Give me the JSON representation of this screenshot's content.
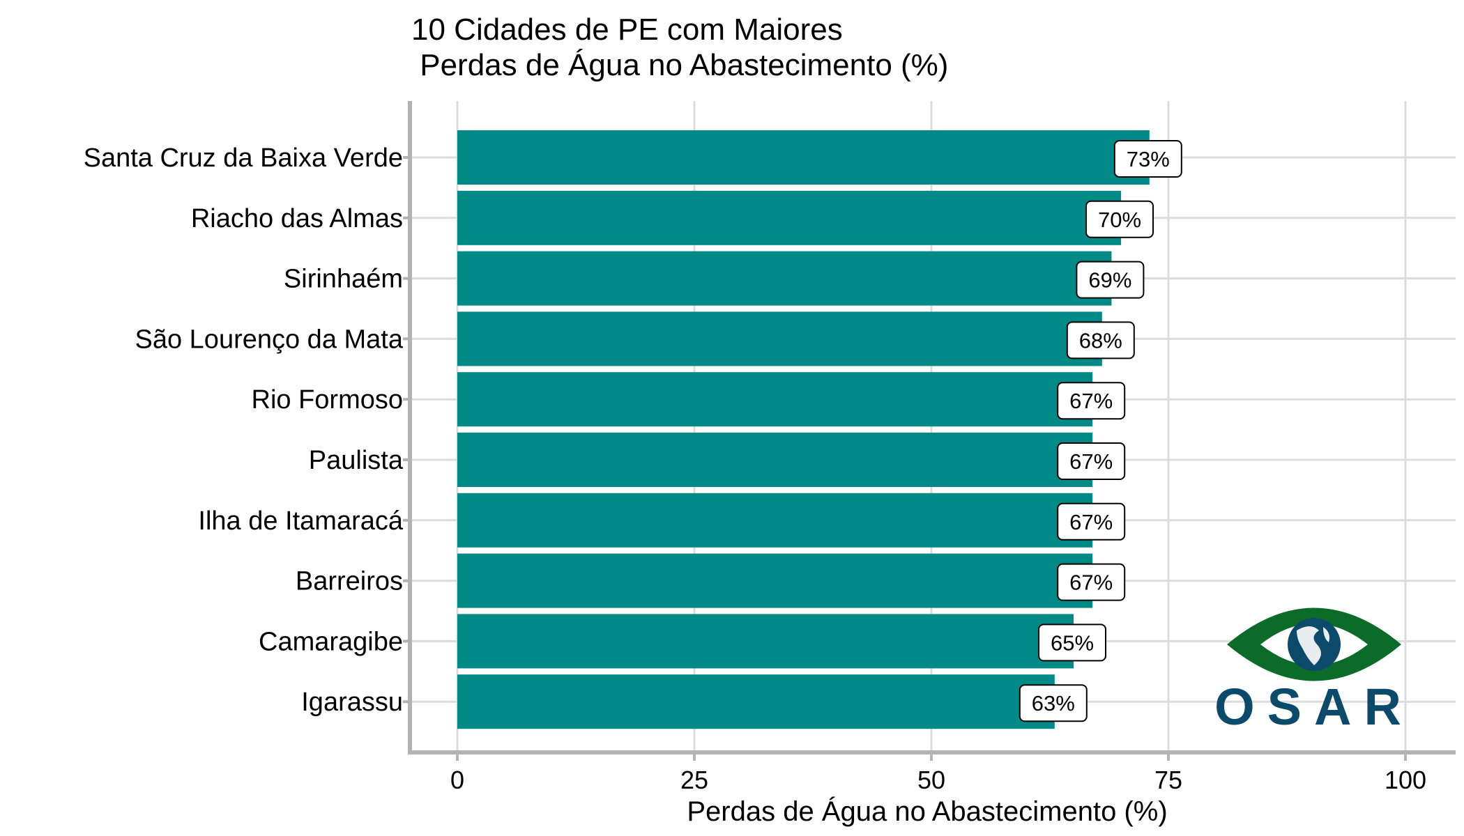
{
  "chart_data": {
    "type": "bar",
    "orientation": "horizontal",
    "title_lines": [
      "10 Cidades de PE com Maiores",
      " Perdas de Água no Abastecimento (%)"
    ],
    "xlabel": "Perdas de Água no Abastecimento (%)",
    "ylabel": "",
    "categories": [
      "Santa Cruz da Baixa Verde",
      "Riacho das Almas",
      "Sirinhaém",
      "São Lourenço da Mata",
      "Rio Formoso",
      "Paulista",
      "Ilha de Itamaracá",
      "Barreiros",
      "Camaragibe",
      "Igarassu"
    ],
    "values": [
      73,
      70,
      69,
      68,
      67,
      67,
      67,
      67,
      65,
      63
    ],
    "data_labels": [
      "73%",
      "70%",
      "69%",
      "68%",
      "67%",
      "67%",
      "67%",
      "67%",
      "65%",
      "63%"
    ],
    "xlim": [
      0,
      100
    ],
    "xticks": [
      0,
      25,
      50,
      75,
      100
    ],
    "xtick_labels": [
      "0",
      "25",
      "50",
      "75",
      "100"
    ],
    "grid": true,
    "bar_color": "#008a87",
    "grid_color": "#dcdcdc",
    "axis_color": "#b3b3b3"
  },
  "logo": {
    "text": "OSAR",
    "eye_color": "#0d6b2a",
    "globe_color": "#0b4a6b",
    "icon": "eye-globe-logo"
  }
}
